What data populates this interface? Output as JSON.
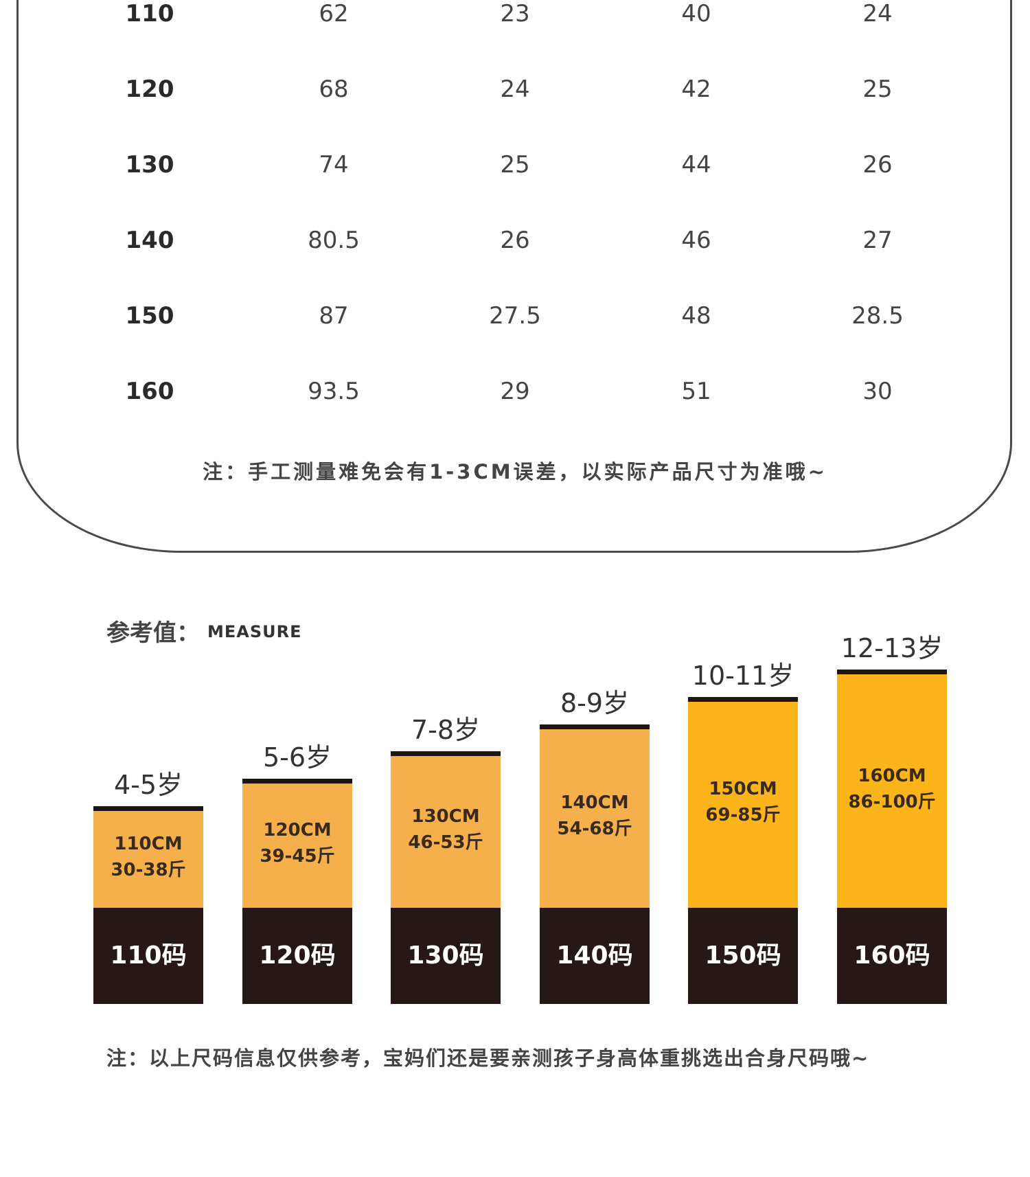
{
  "size_table": {
    "rows": [
      [
        "110",
        "62",
        "23",
        "40",
        "24"
      ],
      [
        "120",
        "68",
        "24",
        "42",
        "25"
      ],
      [
        "130",
        "74",
        "25",
        "44",
        "26"
      ],
      [
        "140",
        "80.5",
        "26",
        "46",
        "27"
      ],
      [
        "150",
        "87",
        "27.5",
        "48",
        "28.5"
      ],
      [
        "160",
        "93.5",
        "29",
        "51",
        "30"
      ]
    ],
    "note": "注：手工测量难免会有1-3CM误差，以实际产品尺寸为准哦~"
  },
  "reference": {
    "title": "参考值：",
    "subtitle": "MEASURE",
    "note": "注：以上尺码信息仅供参考，宝妈们还是要亲测孩子身高体重挑选出合身尺码哦~"
  },
  "chart_data": {
    "type": "bar",
    "categories": [
      "110码",
      "120码",
      "130码",
      "140码",
      "150码",
      "160码"
    ],
    "ages": [
      "4-5岁",
      "5-6岁",
      "7-8岁",
      "8-9岁",
      "10-11岁",
      "12-13岁"
    ],
    "heights_label": [
      "110CM",
      "120CM",
      "130CM",
      "140CM",
      "150CM",
      "160CM"
    ],
    "weights_label": [
      "30-38斤",
      "39-45斤",
      "46-53斤",
      "54-68斤",
      "69-85斤",
      "86-100斤"
    ],
    "values": [
      110,
      120,
      130,
      140,
      150,
      160
    ],
    "colors": {
      "bar_light": "#f5b04c",
      "bar_bright": "#fbb51b",
      "base": "#251816"
    }
  }
}
